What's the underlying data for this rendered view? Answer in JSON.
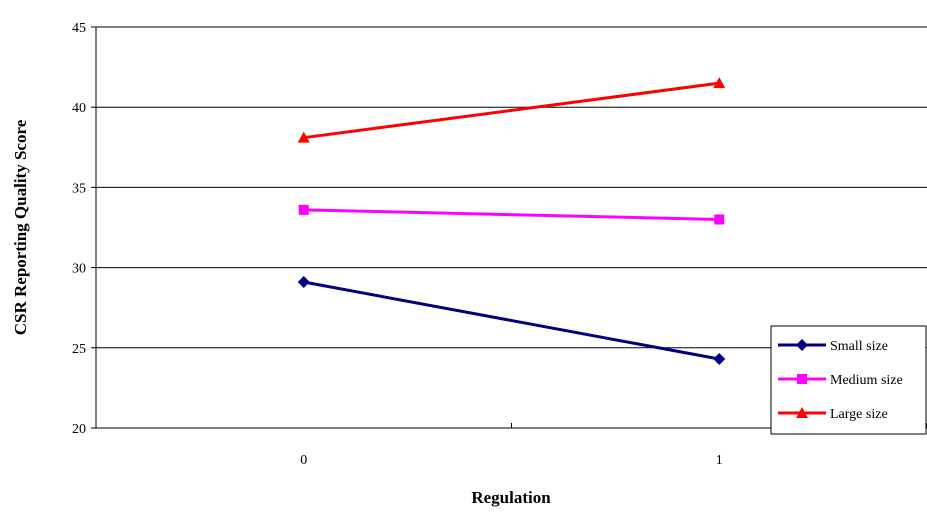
{
  "chart_data": {
    "type": "line",
    "title": "",
    "xlabel": "Regulation",
    "ylabel": "CSR Reporting Quality Score",
    "categories": [
      "0",
      "1"
    ],
    "ylim": [
      20,
      45
    ],
    "yticks": [
      "20",
      "25",
      "30",
      "35",
      "40",
      "45"
    ],
    "grid": true,
    "legend_position": "bottom-right",
    "series": [
      {
        "name": "Small size",
        "values": [
          29.1,
          24.3
        ],
        "color": "#000080",
        "marker": "diamond"
      },
      {
        "name": "Medium size",
        "values": [
          33.6,
          33.0
        ],
        "color": "#ff00ff",
        "marker": "square"
      },
      {
        "name": "Large size",
        "values": [
          38.1,
          41.5
        ],
        "color": "#ff0000",
        "marker": "triangle"
      }
    ]
  }
}
